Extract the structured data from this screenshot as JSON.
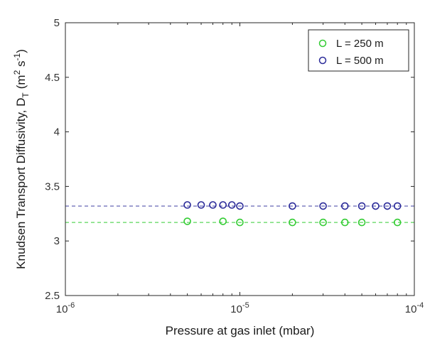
{
  "chart_data": {
    "type": "scatter",
    "xlabel": "Pressure at gas inlet (mbar)",
    "ylabel": {
      "main": "Knudsen Transport Diffusivity, D",
      "sub": "T",
      "unit_open": "(m",
      "unit_sup1": "2",
      "unit_mid": " s",
      "unit_sup2": "-1",
      "unit_close": ")"
    },
    "xscale": "log",
    "xlim": [
      1e-06,
      0.0001
    ],
    "ylim": [
      2.5,
      5
    ],
    "x_ticks": [
      {
        "value": 1e-06,
        "base": "10",
        "exp": "-6"
      },
      {
        "value": 1e-05,
        "base": "10",
        "exp": "-5"
      },
      {
        "value": 0.0001,
        "base": "10",
        "exp": "-4"
      }
    ],
    "y_ticks": [
      {
        "value": 2.5,
        "label": "2.5"
      },
      {
        "value": 3,
        "label": "3"
      },
      {
        "value": 3.5,
        "label": "3.5"
      },
      {
        "value": 4,
        "label": "4"
      },
      {
        "value": 4.5,
        "label": "4.5"
      },
      {
        "value": 5,
        "label": "5"
      }
    ],
    "grid": false,
    "legend_position": "top-right",
    "series": [
      {
        "name": "L = 250 m",
        "color": "#33cc33",
        "marker": "open-circle",
        "fit_line": {
          "y": 3.17,
          "style": "dashed"
        },
        "x": [
          5e-06,
          8e-06,
          1e-05,
          2e-05,
          3e-05,
          4e-05,
          5e-05,
          8e-05
        ],
        "y": [
          3.18,
          3.18,
          3.17,
          3.17,
          3.17,
          3.17,
          3.17,
          3.17
        ]
      },
      {
        "name": "L = 500 m",
        "color": "#2b2b99",
        "marker": "open-circle",
        "fit_line": {
          "y": 3.32,
          "style": "dashed"
        },
        "x": [
          5e-06,
          6e-06,
          7e-06,
          8e-06,
          9e-06,
          1e-05,
          2e-05,
          3e-05,
          4e-05,
          5e-05,
          6e-05,
          7e-05,
          8e-05
        ],
        "y": [
          3.33,
          3.33,
          3.33,
          3.33,
          3.33,
          3.32,
          3.32,
          3.32,
          3.32,
          3.32,
          3.32,
          3.32,
          3.32
        ]
      }
    ]
  }
}
